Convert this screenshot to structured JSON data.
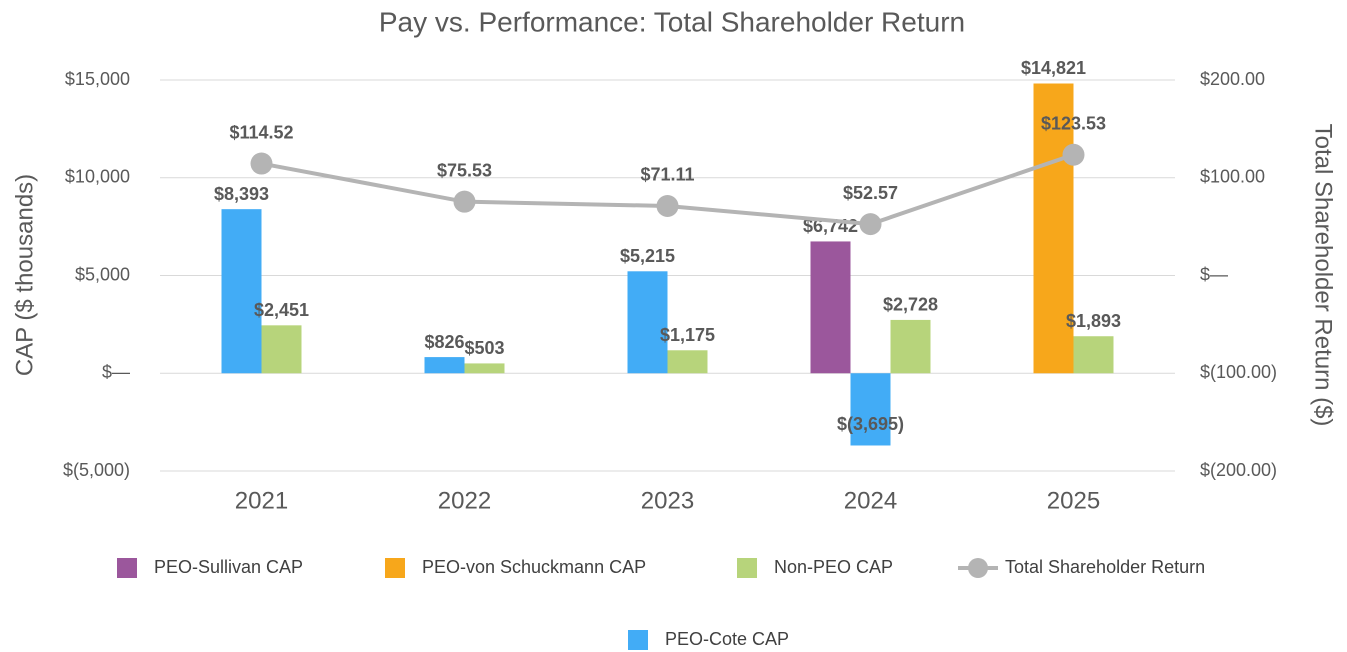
{
  "chart_data": {
    "type": "bar",
    "title": "Pay vs. Performance: Total Shareholder Return",
    "y_label": "CAP ($ thousands)",
    "y2_label": "Total Shareholder Return ($)",
    "categories": [
      "2021",
      "2022",
      "2023",
      "2024",
      "2025"
    ],
    "ylim": [
      -5000,
      15000
    ],
    "yticks": [
      {
        "value": -5000,
        "label": "$(5,000)"
      },
      {
        "value": 0,
        "label": "$—"
      },
      {
        "value": 5000,
        "label": "$5,000"
      },
      {
        "value": 10000,
        "label": "$10,000"
      },
      {
        "value": 15000,
        "label": "$15,000"
      }
    ],
    "y2lim": [
      -200,
      200
    ],
    "y2ticks": [
      {
        "value": -200,
        "label": "$(200.00)"
      },
      {
        "value": -100,
        "label": "$(100.00)"
      },
      {
        "value": 0,
        "label": "$—"
      },
      {
        "value": 100,
        "label": "$100.00"
      },
      {
        "value": 200,
        "label": "$200.00"
      }
    ],
    "grid": true,
    "series": [
      {
        "name": "PEO-Sullivan CAP",
        "type": "bar",
        "color": "#9b579c",
        "values": [
          null,
          null,
          null,
          6742,
          null
        ],
        "value_labels": [
          null,
          null,
          null,
          "$6,742",
          null
        ]
      },
      {
        "name": "PEO-von Schuckmann CAP",
        "type": "bar",
        "color": "#f7a71b",
        "values": [
          null,
          null,
          null,
          null,
          14821
        ],
        "value_labels": [
          null,
          null,
          null,
          null,
          "$14,821"
        ]
      },
      {
        "name": "Non-PEO CAP",
        "type": "bar",
        "color": "#b7d47b",
        "values": [
          2451,
          503,
          1175,
          2728,
          1893
        ],
        "value_labels": [
          "$2,451",
          "$503",
          "$1,175",
          "$2,728",
          "$1,893"
        ]
      },
      {
        "name": "Total Shareholder Return",
        "type": "line",
        "axis": "y2",
        "color": "#b4b4b4",
        "values": [
          114.52,
          75.53,
          71.11,
          52.57,
          123.53
        ],
        "value_labels": [
          "$114.52",
          "$75.53",
          "$71.11",
          "$52.57",
          "$123.53"
        ]
      },
      {
        "name": "PEO-Cote CAP",
        "type": "bar",
        "color": "#42acf6",
        "values": [
          8393,
          826,
          5215,
          -3695,
          null
        ],
        "value_labels": [
          "$8,393",
          "$826",
          "$5,215",
          "$(3,695)",
          null
        ]
      }
    ]
  }
}
